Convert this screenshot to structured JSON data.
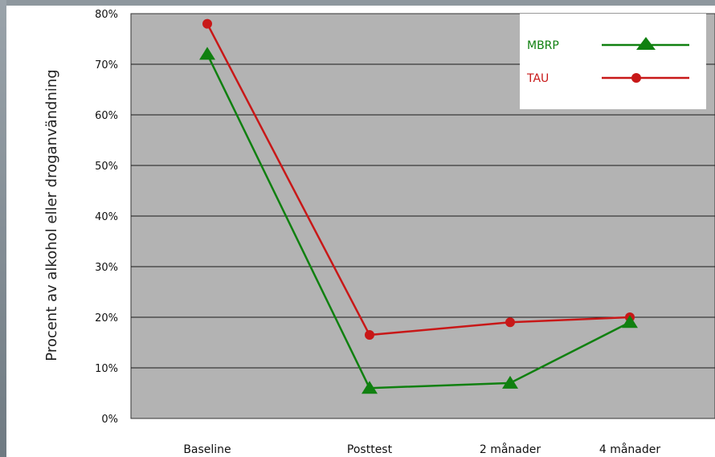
{
  "chart_data": {
    "type": "line",
    "title": "",
    "ylabel": "Procent av alkohol eller droganvändning",
    "xlabel": "",
    "categories": [
      "Baseline",
      "Posttest",
      "2 månader",
      "4 månader"
    ],
    "ylim": [
      0,
      80
    ],
    "y_ticks": [
      0,
      10,
      20,
      30,
      40,
      50,
      60,
      70,
      80
    ],
    "y_tick_labels": [
      "0%",
      "10%",
      "20%",
      "30%",
      "40%",
      "50%",
      "60%",
      "70%",
      "80%"
    ],
    "grid": "horizontal",
    "legend": "top-right",
    "series": [
      {
        "name": "MBRP",
        "color": "#108010",
        "marker": "triangle",
        "values": [
          72,
          6,
          7,
          19
        ]
      },
      {
        "name": "TAU",
        "color": "#c81818",
        "marker": "circle",
        "values": [
          78,
          16.5,
          19,
          20
        ]
      }
    ]
  }
}
